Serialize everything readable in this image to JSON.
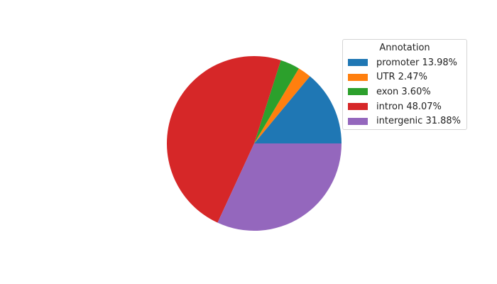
{
  "chart_data": {
    "type": "pie",
    "legend_title": "Annotation",
    "legend_placement": "top-right",
    "start_angle": 0,
    "direction": "counterclockwise",
    "slices": [
      {
        "label": "promoter 13.98%",
        "category": "promoter",
        "value": 13.98,
        "color": "#1f77b4"
      },
      {
        "label": "UTR 2.47%",
        "category": "UTR",
        "value": 2.47,
        "color": "#ff7f0e"
      },
      {
        "label": "exon 3.60%",
        "category": "exon",
        "value": 3.6,
        "color": "#2ca02c"
      },
      {
        "label": "intron 48.07%",
        "category": "intron",
        "value": 48.07,
        "color": "#d62728"
      },
      {
        "label": "intergenic 31.88%",
        "category": "intergenic",
        "value": 31.88,
        "color": "#9467bd"
      }
    ]
  }
}
